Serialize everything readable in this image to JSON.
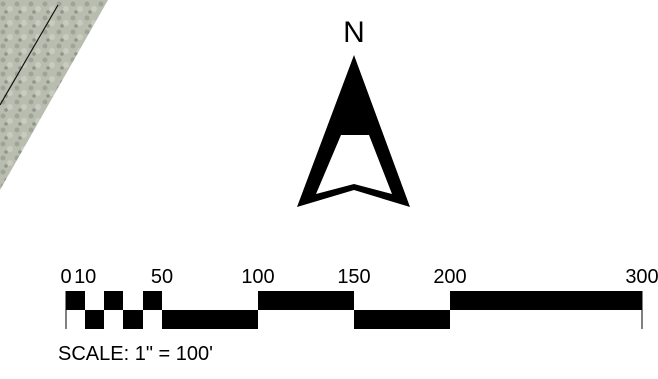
{
  "north_label": "N",
  "scale_bar": {
    "ticks": [
      0,
      10,
      50,
      100,
      150,
      200,
      300
    ]
  },
  "scale_text": "SCALE: 1\" = 100'"
}
